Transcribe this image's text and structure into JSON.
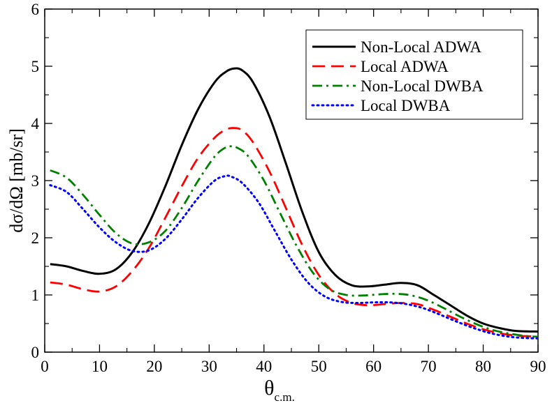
{
  "chart_data": {
    "type": "line",
    "xlabel": "θ",
    "xlabel_subscript": "c.m.",
    "ylabel": "dσ/dΩ  [mb/sr]",
    "xlim": [
      0,
      90
    ],
    "ylim": [
      0,
      6
    ],
    "x_ticks": [
      0,
      10,
      20,
      30,
      40,
      50,
      60,
      70,
      80,
      90
    ],
    "y_ticks": [
      0,
      1,
      2,
      3,
      4,
      5,
      6
    ],
    "x_tick_labels": [
      "0",
      "10",
      "20",
      "30",
      "40",
      "50",
      "60",
      "70",
      "80",
      "90"
    ],
    "y_tick_labels": [
      "0",
      "1",
      "2",
      "3",
      "4",
      "5",
      "6"
    ],
    "grid": false,
    "legend_position": "top-right",
    "series": [
      {
        "name": "Non-Local ADWA",
        "color": "#000000",
        "dash": "solid",
        "points": [
          [
            1,
            1.54
          ],
          [
            4,
            1.5
          ],
          [
            7,
            1.42
          ],
          [
            10,
            1.37
          ],
          [
            13,
            1.45
          ],
          [
            16,
            1.75
          ],
          [
            19,
            2.25
          ],
          [
            22,
            2.9
          ],
          [
            25,
            3.62
          ],
          [
            28,
            4.25
          ],
          [
            31,
            4.72
          ],
          [
            33,
            4.9
          ],
          [
            34.5,
            4.96
          ],
          [
            36,
            4.93
          ],
          [
            38,
            4.72
          ],
          [
            41,
            4.12
          ],
          [
            44,
            3.3
          ],
          [
            47,
            2.45
          ],
          [
            50,
            1.75
          ],
          [
            53,
            1.35
          ],
          [
            56,
            1.17
          ],
          [
            59,
            1.15
          ],
          [
            62,
            1.18
          ],
          [
            65,
            1.21
          ],
          [
            68,
            1.17
          ],
          [
            71,
            1.0
          ],
          [
            74,
            0.82
          ],
          [
            77,
            0.64
          ],
          [
            80,
            0.5
          ],
          [
            83,
            0.42
          ],
          [
            86,
            0.37
          ],
          [
            90,
            0.36
          ]
        ]
      },
      {
        "name": "Local ADWA",
        "color": "#ff0000",
        "dash": "dashed",
        "points": [
          [
            1,
            1.22
          ],
          [
            4,
            1.18
          ],
          [
            7,
            1.1
          ],
          [
            10,
            1.06
          ],
          [
            13,
            1.15
          ],
          [
            16,
            1.42
          ],
          [
            19,
            1.82
          ],
          [
            22,
            2.35
          ],
          [
            25,
            2.9
          ],
          [
            28,
            3.4
          ],
          [
            31,
            3.75
          ],
          [
            33,
            3.89
          ],
          [
            34.5,
            3.92
          ],
          [
            36,
            3.88
          ],
          [
            38,
            3.67
          ],
          [
            41,
            3.16
          ],
          [
            44,
            2.52
          ],
          [
            47,
            1.87
          ],
          [
            50,
            1.35
          ],
          [
            53,
            1.02
          ],
          [
            56,
            0.86
          ],
          [
            59,
            0.82
          ],
          [
            62,
            0.84
          ],
          [
            65,
            0.86
          ],
          [
            68,
            0.84
          ],
          [
            71,
            0.74
          ],
          [
            74,
            0.62
          ],
          [
            77,
            0.5
          ],
          [
            80,
            0.4
          ],
          [
            83,
            0.33
          ],
          [
            86,
            0.29
          ],
          [
            90,
            0.27
          ]
        ]
      },
      {
        "name": "Non-Local DWBA",
        "color": "#008000",
        "dash": "dashdot",
        "points": [
          [
            1,
            3.18
          ],
          [
            4,
            3.05
          ],
          [
            7,
            2.75
          ],
          [
            10,
            2.4
          ],
          [
            13,
            2.08
          ],
          [
            16,
            1.9
          ],
          [
            19,
            1.92
          ],
          [
            22,
            2.12
          ],
          [
            25,
            2.52
          ],
          [
            28,
            3.0
          ],
          [
            31,
            3.42
          ],
          [
            33,
            3.58
          ],
          [
            34,
            3.6
          ],
          [
            35,
            3.58
          ],
          [
            37,
            3.44
          ],
          [
            40,
            3.0
          ],
          [
            43,
            2.42
          ],
          [
            46,
            1.85
          ],
          [
            49,
            1.38
          ],
          [
            52,
            1.1
          ],
          [
            55,
            1.0
          ],
          [
            58,
            0.99
          ],
          [
            61,
            1.01
          ],
          [
            64,
            1.02
          ],
          [
            67,
            0.99
          ],
          [
            70,
            0.9
          ],
          [
            73,
            0.76
          ],
          [
            76,
            0.61
          ],
          [
            79,
            0.48
          ],
          [
            82,
            0.38
          ],
          [
            85,
            0.32
          ],
          [
            88,
            0.28
          ],
          [
            90,
            0.27
          ]
        ]
      },
      {
        "name": "Local DWBA",
        "color": "#0000ff",
        "dash": "dotted",
        "points": [
          [
            1,
            2.92
          ],
          [
            4,
            2.8
          ],
          [
            7,
            2.5
          ],
          [
            10,
            2.18
          ],
          [
            13,
            1.92
          ],
          [
            16,
            1.77
          ],
          [
            19,
            1.78
          ],
          [
            22,
            1.98
          ],
          [
            25,
            2.32
          ],
          [
            28,
            2.7
          ],
          [
            31,
            3.0
          ],
          [
            33,
            3.08
          ],
          [
            34,
            3.07
          ],
          [
            36,
            2.96
          ],
          [
            39,
            2.62
          ],
          [
            42,
            2.12
          ],
          [
            45,
            1.62
          ],
          [
            48,
            1.22
          ],
          [
            51,
            0.98
          ],
          [
            54,
            0.88
          ],
          [
            57,
            0.86
          ],
          [
            60,
            0.87
          ],
          [
            63,
            0.87
          ],
          [
            66,
            0.84
          ],
          [
            69,
            0.77
          ],
          [
            72,
            0.66
          ],
          [
            75,
            0.54
          ],
          [
            78,
            0.43
          ],
          [
            81,
            0.34
          ],
          [
            84,
            0.28
          ],
          [
            87,
            0.25
          ],
          [
            90,
            0.24
          ]
        ]
      }
    ]
  }
}
